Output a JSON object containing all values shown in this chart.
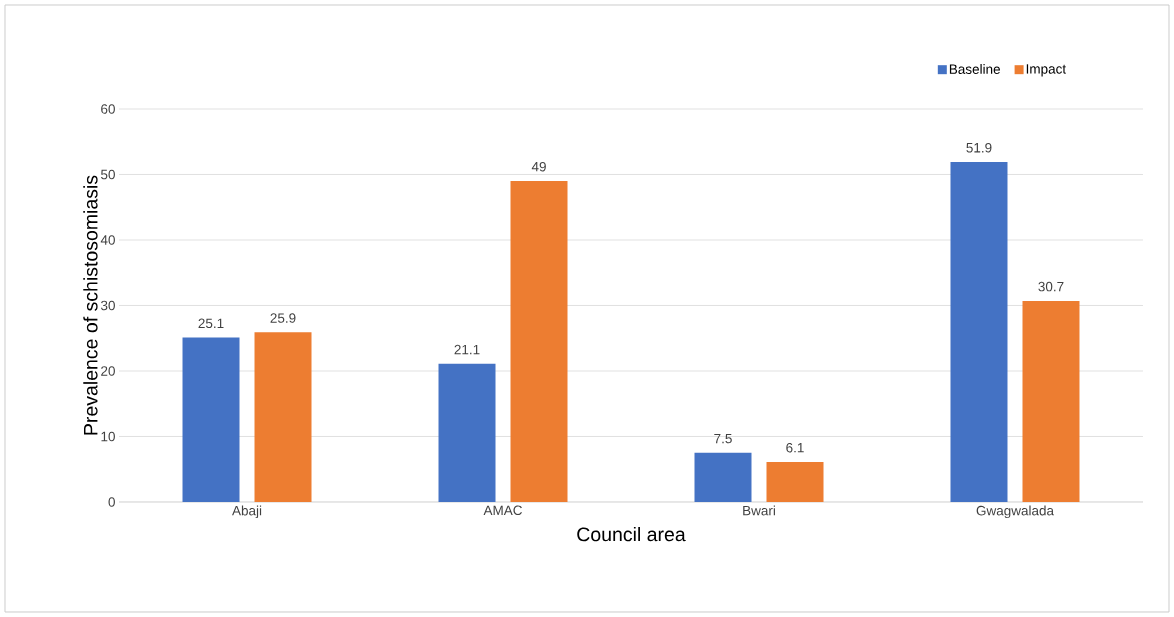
{
  "chart_data": {
    "type": "bar",
    "xlabel": "Council area",
    "ylabel": "Prevalence of schistosomiasis",
    "categories": [
      "Abaji",
      "AMAC",
      "Bwari",
      "Gwagwalada"
    ],
    "series": [
      {
        "name": "Baseline",
        "color": "#4472c4",
        "values": [
          25.1,
          21.1,
          7.5,
          51.9
        ]
      },
      {
        "name": "Impact",
        "color": "#ed7d31",
        "values": [
          25.9,
          49,
          6.1,
          30.7
        ]
      }
    ],
    "ylim": [
      0,
      60
    ],
    "yticks": [
      0,
      10,
      20,
      30,
      40,
      50,
      60
    ],
    "grid": "y",
    "legend": "top right",
    "data_labels": true
  }
}
